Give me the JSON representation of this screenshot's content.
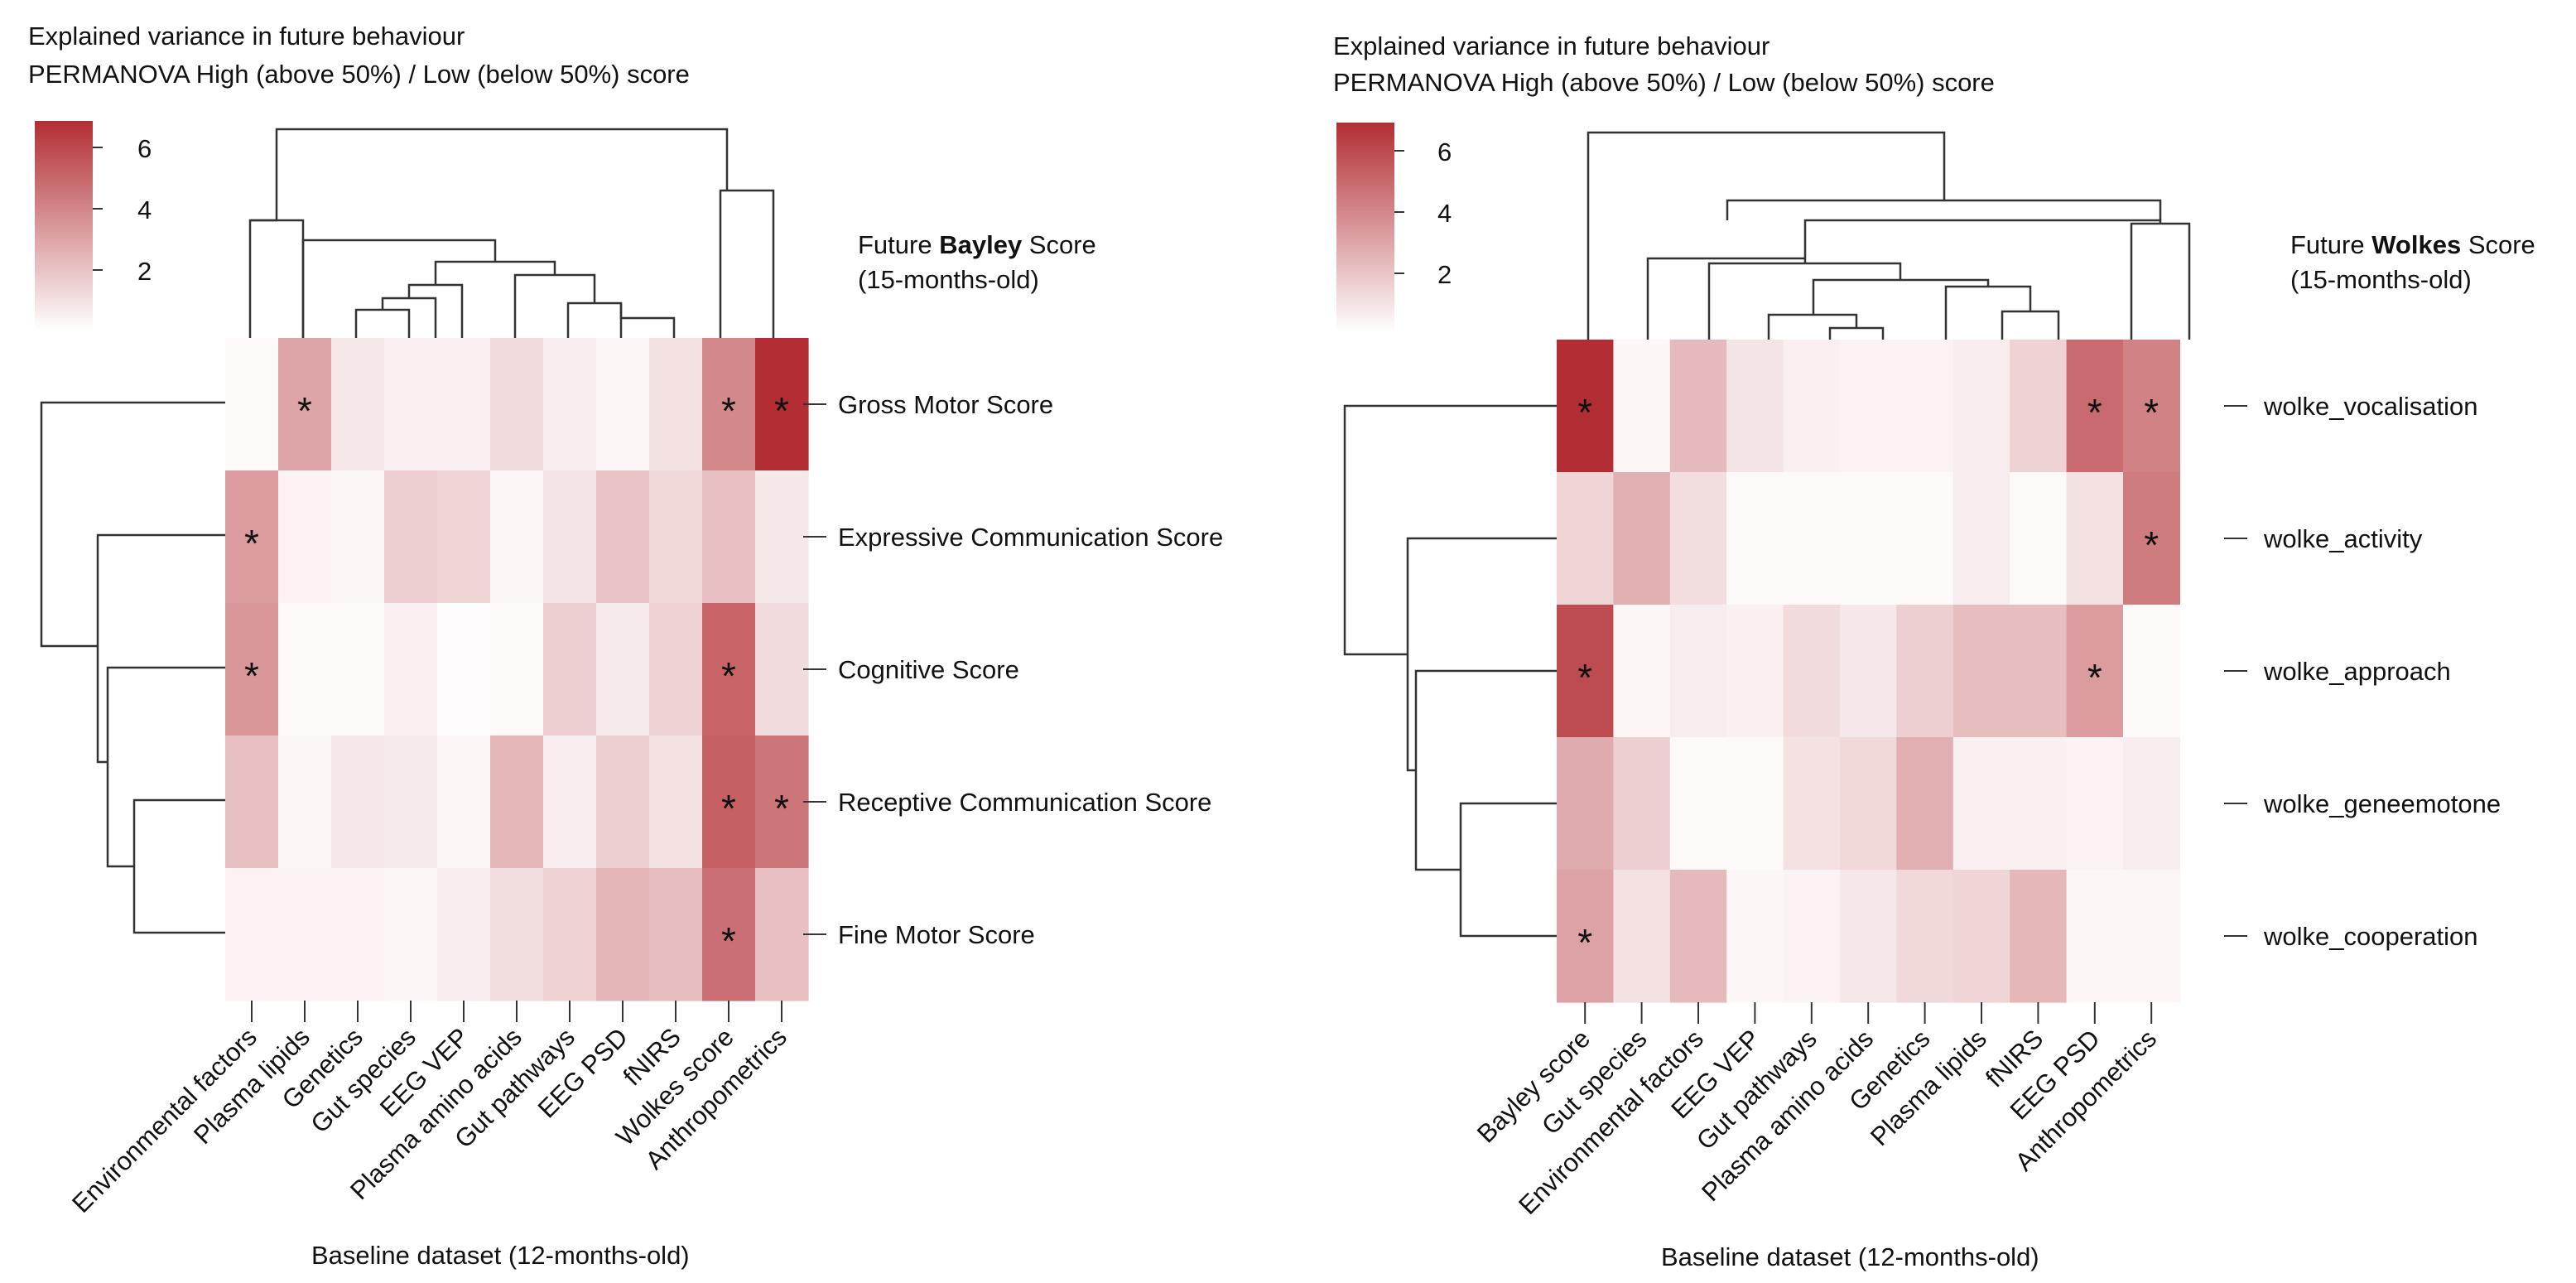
{
  "colors": {
    "low": "#ffffff",
    "high": "#b22e34",
    "line": "#333333"
  },
  "chart_data": [
    {
      "type": "heatmap",
      "title_line1": "Explained variance in future behaviour",
      "title_line2": "PERMANOVA High (above 50%) / Low (below 50%) score",
      "legend_ticks": [
        "6",
        "4",
        "2"
      ],
      "legend_values": [
        6,
        4,
        2
      ],
      "legend_range": [
        0,
        7
      ],
      "score_label_prefix": "Future ",
      "score_label_bold": "Bayley",
      "score_label_suffix": " Score",
      "score_label_age": "(15-months-old)",
      "xlabel": "Baseline dataset (12-months-old)",
      "columns": [
        "Environmental factors",
        "Plasma lipids",
        "Genetics",
        "Gut species",
        "EEG VEP",
        "Plasma amino acids",
        "Gut pathways",
        "EEG PSD",
        "fNIRS",
        "Wolkes score",
        "Anthropometrics"
      ],
      "rows": [
        "Gross Motor Score",
        "Expressive Communication Score",
        "Cognitive Score",
        "Receptive Communication Score",
        "Fine Motor Score"
      ],
      "values": [
        [
          0.2,
          3.0,
          0.8,
          0.5,
          0.5,
          1.2,
          0.6,
          0.3,
          1.0,
          4.0,
          7.0
        ],
        [
          3.3,
          0.4,
          0.3,
          1.6,
          1.4,
          0.3,
          0.9,
          2.0,
          1.3,
          2.1,
          0.8
        ],
        [
          3.5,
          0.2,
          0.2,
          0.5,
          0.1,
          0.2,
          1.6,
          0.7,
          1.5,
          5.2,
          1.2
        ],
        [
          2.1,
          0.3,
          0.8,
          0.7,
          0.3,
          2.4,
          0.6,
          1.6,
          1.0,
          5.3,
          4.6
        ],
        [
          0.4,
          0.4,
          0.4,
          0.3,
          0.6,
          1.1,
          1.5,
          2.5,
          2.2,
          4.8,
          2.1
        ]
      ],
      "significant": [
        [
          0,
          1
        ],
        [
          0,
          9
        ],
        [
          0,
          10
        ],
        [
          1,
          0
        ],
        [
          2,
          0
        ],
        [
          2,
          9
        ],
        [
          3,
          9
        ],
        [
          3,
          10
        ],
        [
          4,
          9
        ]
      ],
      "significance_mark": "*",
      "row_dendrogram_order_note": "",
      "legend_placement": "top-left"
    },
    {
      "type": "heatmap",
      "title_line1": "Explained variance in future behaviour",
      "title_line2": "PERMANOVA High (above 50%) / Low (below 50%) score",
      "legend_ticks": [
        "6",
        "4",
        "2"
      ],
      "legend_values": [
        6,
        4,
        2
      ],
      "legend_range": [
        0,
        7
      ],
      "score_label_prefix": "Future ",
      "score_label_bold": "Wolkes",
      "score_label_suffix": " Score",
      "score_label_age": "(15-months-old)",
      "xlabel": "Baseline dataset (12-months-old)",
      "columns": [
        "Bayley score",
        "Gut species",
        "Environmental factors",
        "EEG VEP",
        "Gut pathways",
        "Plasma amino acids",
        "Genetics",
        "Plasma lipids",
        "fNIRS",
        "EEG PSD",
        "Anthropometrics"
      ],
      "rows": [
        "wolke_vocalisation",
        "wolke_activity",
        "wolke_approach",
        "wolke_geneemotone",
        "wolke_cooperation"
      ],
      "values": [
        [
          7.0,
          0.3,
          2.3,
          0.9,
          0.5,
          0.4,
          0.4,
          0.6,
          1.5,
          5.0,
          4.2
        ],
        [
          1.4,
          2.7,
          1.1,
          0.2,
          0.2,
          0.2,
          0.2,
          0.6,
          0.2,
          1.0,
          4.4
        ],
        [
          6.0,
          0.3,
          0.6,
          0.5,
          1.2,
          0.8,
          1.6,
          2.2,
          2.2,
          3.3,
          0.2
        ],
        [
          2.8,
          1.6,
          0.2,
          0.2,
          1.0,
          1.3,
          2.7,
          0.5,
          0.5,
          0.4,
          0.6
        ],
        [
          3.1,
          1.0,
          2.3,
          0.3,
          0.4,
          0.8,
          1.3,
          1.4,
          2.4,
          0.3,
          0.3
        ]
      ],
      "significant": [
        [
          0,
          0
        ],
        [
          0,
          9
        ],
        [
          0,
          10
        ],
        [
          1,
          10
        ],
        [
          2,
          0
        ],
        [
          2,
          9
        ],
        [
          4,
          0
        ]
      ],
      "significance_mark": "*",
      "legend_placement": "top-left"
    }
  ]
}
